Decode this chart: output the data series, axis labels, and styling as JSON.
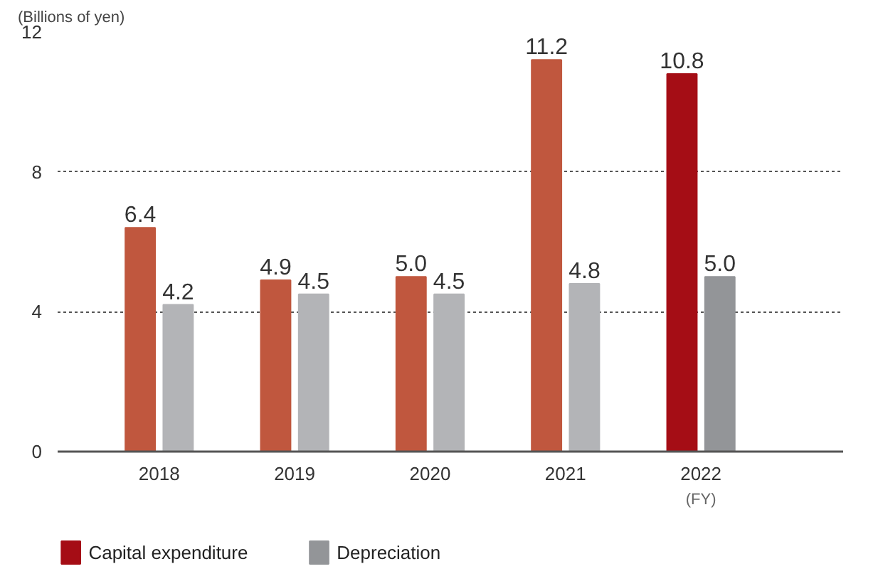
{
  "chart_data": {
    "type": "bar",
    "ylabel": "(Billions of yen)",
    "categories": [
      "2018",
      "2019",
      "2020",
      "2021",
      "2022"
    ],
    "series": [
      {
        "name": "Capital expenditure",
        "color": "#a50d15",
        "colors": [
          "#c0573e",
          "#c0573e",
          "#c0573e",
          "#c0573e",
          "#a50d15"
        ],
        "values": [
          6.4,
          4.9,
          5.0,
          11.2,
          10.8
        ],
        "value_labels": [
          "6.4",
          "4.9",
          "5.0",
          "11.2",
          "10.8"
        ]
      },
      {
        "name": "Depreciation",
        "color": "#939598",
        "colors": [
          "#b3b4b7",
          "#b3b4b7",
          "#b3b4b7",
          "#b3b4b7",
          "#939598"
        ],
        "values": [
          4.2,
          4.5,
          4.5,
          4.8,
          5.0
        ],
        "value_labels": [
          "4.2",
          "4.5",
          "4.5",
          "4.8",
          "5.0"
        ]
      }
    ],
    "ylim": [
      0,
      12
    ],
    "yticks": [
      0,
      4,
      8,
      12
    ],
    "grid": "y",
    "legend": "bottom",
    "annotations": [
      "(FY)"
    ]
  }
}
